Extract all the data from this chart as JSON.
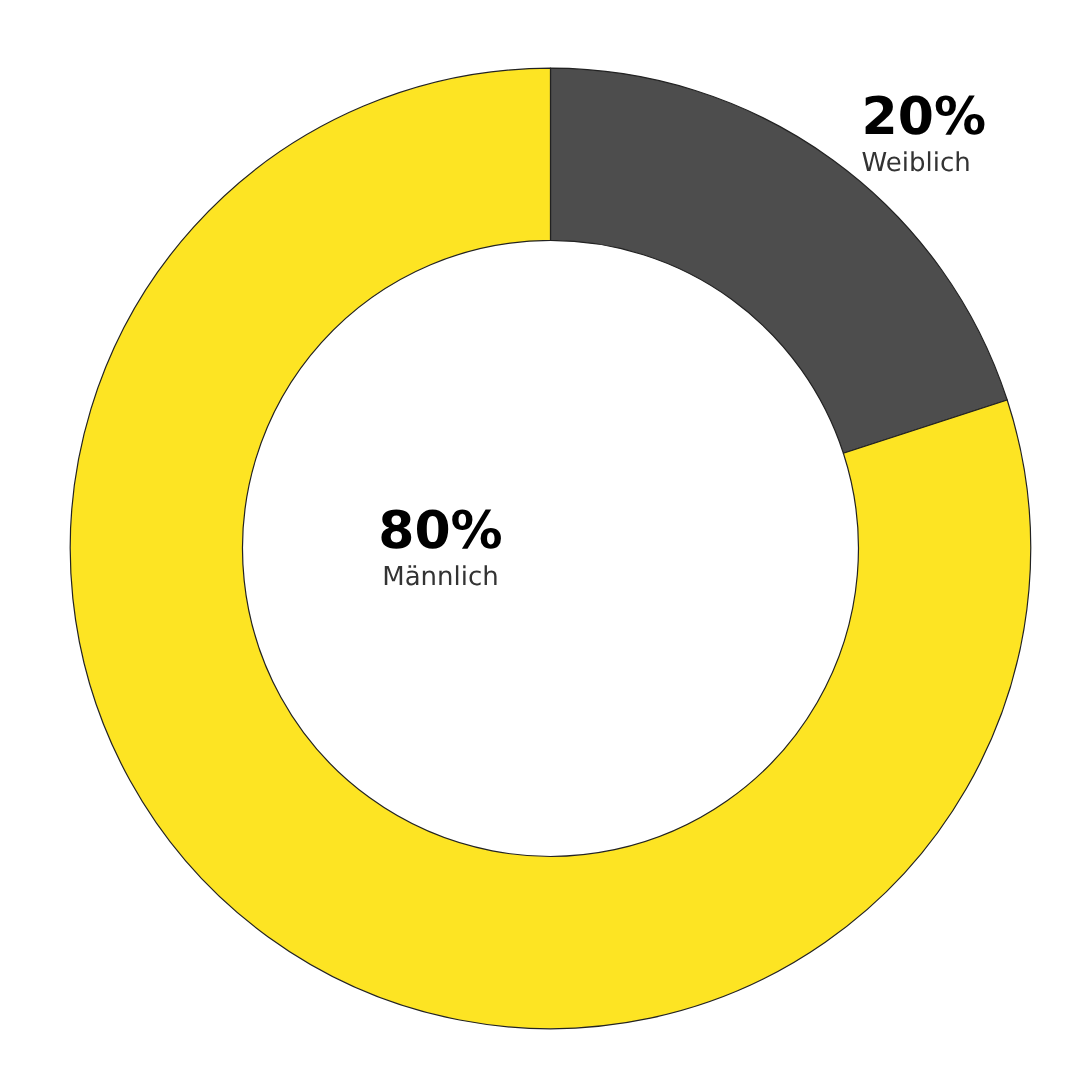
{
  "chart_data": {
    "type": "donut",
    "categories": [
      "Weiblich",
      "Männlich"
    ],
    "values": [
      20,
      80
    ],
    "colors": [
      "#4d4d4d",
      "#fde423"
    ],
    "value_labels": [
      "20%",
      "80%"
    ]
  }
}
